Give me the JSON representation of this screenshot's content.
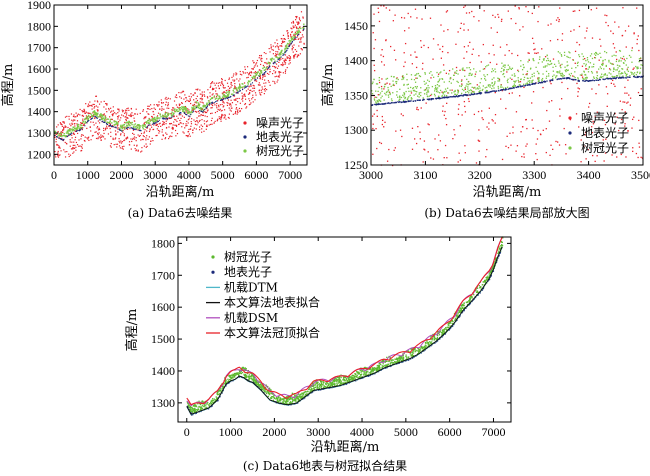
{
  "chart_data": [
    {
      "id": "a",
      "type": "scatter",
      "caption": "(a) Data6去噪结果",
      "xlabel": "沿轨距离/m",
      "ylabel": "高程/m",
      "xlim": [
        0,
        7500
      ],
      "ylim": [
        1150,
        1900
      ],
      "xticks": [
        0,
        1000,
        2000,
        3000,
        4000,
        5000,
        6000,
        7000
      ],
      "yticks": [
        1200,
        1300,
        1400,
        1500,
        1600,
        1700,
        1800,
        1900
      ],
      "legend_position": "bottom-right",
      "series": [
        {
          "name": "噪声光子",
          "color": "#e8222a",
          "marker": "dot"
        },
        {
          "name": "地表光子",
          "color": "#1c2a7a",
          "marker": "dot"
        },
        {
          "name": "树冠光子",
          "color": "#7cc846",
          "marker": "dot"
        }
      ],
      "ground_profile": {
        "x": [
          0,
          250,
          500,
          800,
          1000,
          1200,
          1400,
          1600,
          1800,
          2000,
          2200,
          2400,
          2600,
          2800,
          3000,
          3200,
          3400,
          3600,
          3800,
          4000,
          4200,
          4400,
          4600,
          4800,
          5000,
          5200,
          5400,
          5600,
          5800,
          6000,
          6200,
          6400,
          6600,
          6800,
          7000,
          7200,
          7400
        ],
        "y": [
          1290,
          1270,
          1300,
          1320,
          1360,
          1380,
          1360,
          1340,
          1330,
          1310,
          1330,
          1320,
          1310,
          1340,
          1350,
          1370,
          1370,
          1390,
          1400,
          1380,
          1420,
          1400,
          1440,
          1450,
          1460,
          1470,
          1490,
          1510,
          1530,
          1560,
          1580,
          1620,
          1640,
          1670,
          1720,
          1760,
          1790
        ]
      },
      "noise_band_halfwidth_m": 100
    },
    {
      "id": "b",
      "type": "scatter",
      "caption": "(b) Data6去噪结果局部放大图",
      "xlabel": "沿轨距离/m",
      "ylabel": "高程/m",
      "xlim": [
        3000,
        3500
      ],
      "ylim": [
        1250,
        1480
      ],
      "xticks": [
        3000,
        3100,
        3200,
        3300,
        3400,
        3500
      ],
      "yticks": [
        1250,
        1300,
        1350,
        1400,
        1450
      ],
      "legend_position": "bottom-right",
      "series": [
        {
          "name": "噪声光子",
          "color": "#e8222a",
          "marker": "dot"
        },
        {
          "name": "地表光子",
          "color": "#1c2a7a",
          "marker": "dot"
        },
        {
          "name": "树冠光子",
          "color": "#7cc846",
          "marker": "dot"
        }
      ],
      "ground_profile": {
        "x": [
          3000,
          3050,
          3100,
          3150,
          3200,
          3250,
          3300,
          3340,
          3360,
          3380,
          3400,
          3450,
          3500
        ],
        "y": [
          1337,
          1341,
          1345,
          1349,
          1354,
          1360,
          1368,
          1374,
          1376,
          1372,
          1372,
          1376,
          1378
        ]
      }
    },
    {
      "id": "c",
      "type": "line",
      "caption": "(c) Data6地表与树冠拟合结果",
      "xlabel": "沿轨距离/m",
      "ylabel": "高程/m",
      "xlim": [
        -200,
        7400
      ],
      "ylim": [
        1240,
        1820
      ],
      "xticks": [
        0,
        1000,
        2000,
        3000,
        4000,
        5000,
        6000,
        7000
      ],
      "yticks": [
        1300,
        1400,
        1500,
        1600,
        1700,
        1800
      ],
      "legend_position": "top-left",
      "series": [
        {
          "name": "树冠光子",
          "color": "#5cb82e",
          "marker": "dot"
        },
        {
          "name": "地表光子",
          "color": "#1c2a7a",
          "marker": "dot"
        },
        {
          "name": "机载DTM",
          "color": "#4fb7c9",
          "marker": "line"
        },
        {
          "name": "本文算法地表拟合",
          "color": "#111111",
          "marker": "line"
        },
        {
          "name": "机载DSM",
          "color": "#b04fbf",
          "marker": "line"
        },
        {
          "name": "本文算法冠顶拟合",
          "color": "#e8222a",
          "marker": "line"
        }
      ],
      "ground_profile": {
        "x": [
          0,
          100,
          200,
          300,
          500,
          700,
          900,
          1000,
          1100,
          1200,
          1300,
          1400,
          1500,
          1700,
          1900,
          2100,
          2300,
          2500,
          2700,
          2900,
          3100,
          3300,
          3500,
          3700,
          3900,
          4100,
          4300,
          4500,
          4700,
          4900,
          5100,
          5300,
          5500,
          5700,
          5900,
          6100,
          6300,
          6500,
          6700,
          6900,
          7000,
          7100,
          7200
        ],
        "y": [
          1290,
          1265,
          1270,
          1275,
          1285,
          1310,
          1360,
          1370,
          1375,
          1385,
          1380,
          1370,
          1365,
          1340,
          1310,
          1300,
          1295,
          1300,
          1320,
          1340,
          1345,
          1350,
          1355,
          1365,
          1375,
          1385,
          1395,
          1410,
          1420,
          1430,
          1440,
          1455,
          1475,
          1495,
          1520,
          1550,
          1590,
          1620,
          1650,
          1690,
          1720,
          1760,
          1790
        ]
      },
      "canopy_height_m": 30
    }
  ]
}
